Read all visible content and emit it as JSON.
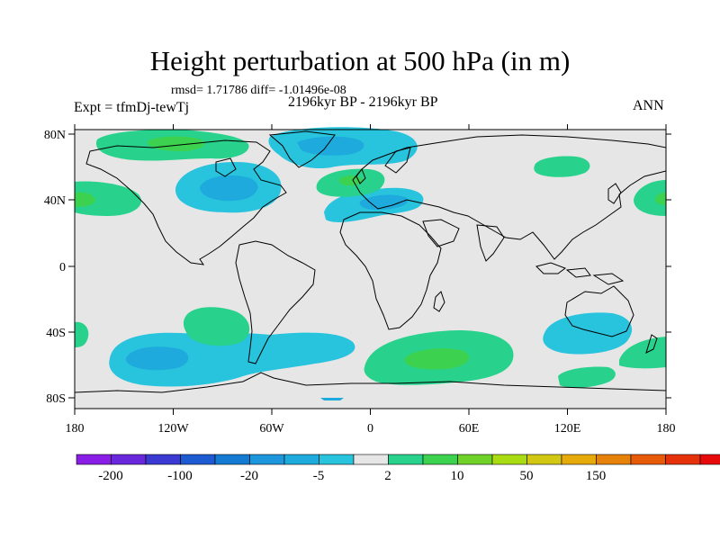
{
  "title": "Height perturbation at 500 hPa (in m)",
  "stats": "rmsd= 1.71786 diff= -1.01496e-08",
  "experiment": "Expt = tfmDj-tewTj",
  "period": "2196kyr BP - 2196kyr BP",
  "season": "ANN",
  "lat_ticks": [
    "80N",
    "40N",
    "0",
    "40S",
    "80S"
  ],
  "lon_ticks": [
    "180",
    "120W",
    "60W",
    "0",
    "60E",
    "120E",
    "180"
  ],
  "colorbar": {
    "labels": [
      "-200",
      "-100",
      "-20",
      "-5",
      "2",
      "10",
      "50",
      "150"
    ],
    "colors": [
      "#8a1ee6",
      "#6a28dc",
      "#3a3ad2",
      "#1e5ad2",
      "#147ad2",
      "#1e96dc",
      "#1eaadc",
      "#28c3dc",
      "#e6e6e6",
      "#28d28c",
      "#3cd250",
      "#6ed228",
      "#aadc14",
      "#d2c814",
      "#e6aa0a",
      "#e6820a",
      "#e65a0a",
      "#e6320a",
      "#e60a0a"
    ]
  },
  "colors": {
    "land_background": "#e6e6e6",
    "neg_light": "#28c3dc",
    "neg_mid": "#1eaadc",
    "neg_dark": "#1e96dc",
    "pos_light": "#28d28c",
    "pos_dark": "#3cd250"
  }
}
